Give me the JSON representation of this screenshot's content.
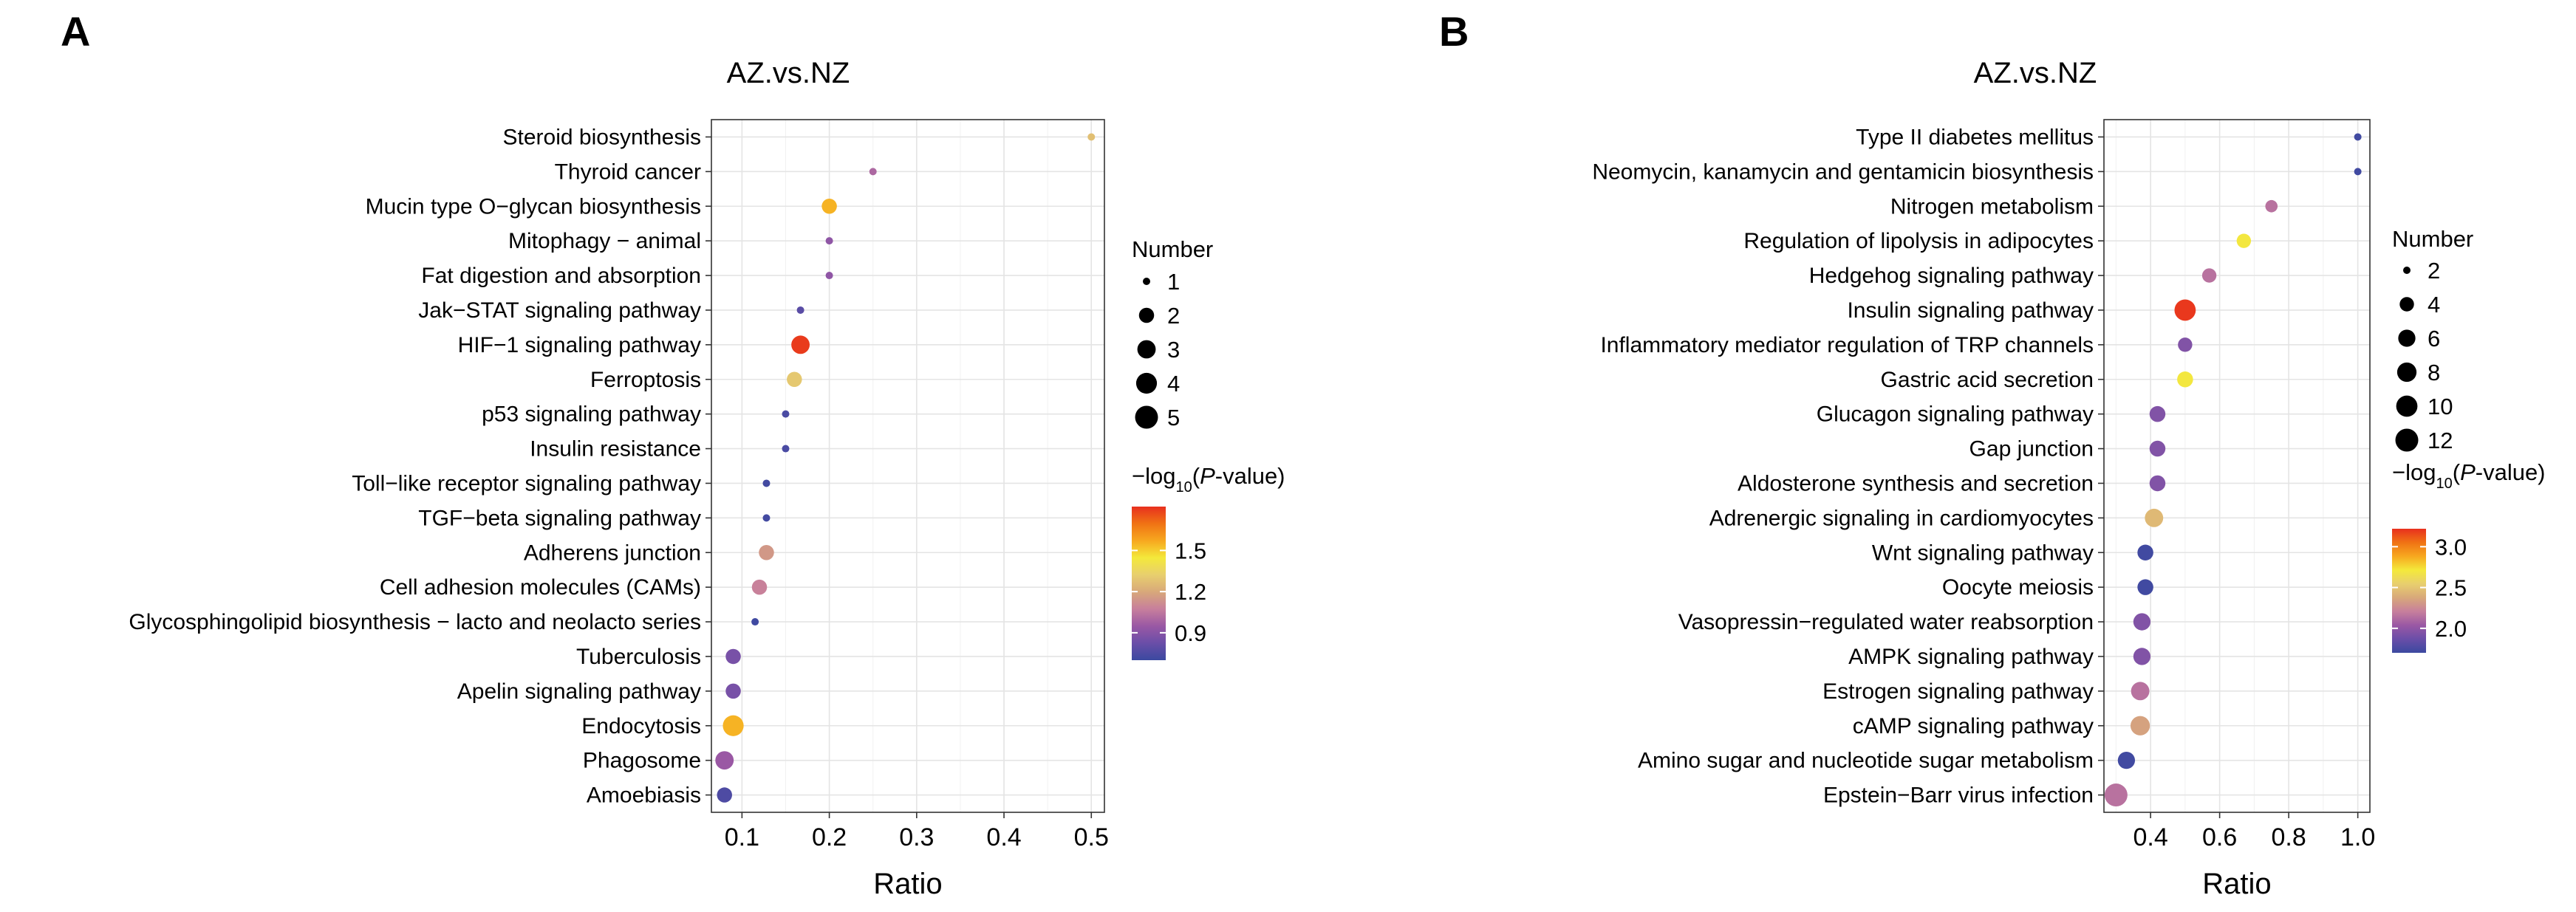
{
  "colors": {
    "scale": [
      "#3b49a0",
      "#6a4ea8",
      "#9a58a4",
      "#c77f9c",
      "#d8a87a",
      "#e8cf6e",
      "#f4e93b",
      "#f7a81f",
      "#f07314",
      "#e8301e"
    ]
  },
  "chart_data": [
    {
      "panel": "A",
      "type": "scatter",
      "title": "AZ.vs.NZ",
      "xlabel": "Ratio",
      "ylabel": "",
      "xlim": [
        0.065,
        0.515
      ],
      "xticks": [
        0.1,
        0.2,
        0.3,
        0.4,
        0.5
      ],
      "xtick_labels": [
        "0.1",
        "0.2",
        "0.3",
        "0.4",
        "0.5"
      ],
      "grid": true,
      "color_range": [
        0.7,
        1.82
      ],
      "size_range": [
        1,
        5
      ],
      "points": [
        {
          "pathway": "Steroid biosynthesis",
          "ratio": 0.5,
          "number": 1,
          "neglog10p": 1.27
        },
        {
          "pathway": "Thyroid cancer",
          "ratio": 0.25,
          "number": 1,
          "neglog10p": 1.0
        },
        {
          "pathway": "Mucin type O−glycan biosynthesis",
          "ratio": 0.2,
          "number": 2,
          "neglog10p": 1.55
        },
        {
          "pathway": "Mitophagy − animal",
          "ratio": 0.2,
          "number": 1,
          "neglog10p": 0.92
        },
        {
          "pathway": "Fat digestion and absorption",
          "ratio": 0.2,
          "number": 1,
          "neglog10p": 0.92
        },
        {
          "pathway": "Jak−STAT signaling pathway",
          "ratio": 0.167,
          "number": 1,
          "neglog10p": 0.78
        },
        {
          "pathway": "HIF−1 signaling pathway",
          "ratio": 0.167,
          "number": 3,
          "neglog10p": 1.8
        },
        {
          "pathway": "Ferroptosis",
          "ratio": 0.16,
          "number": 2,
          "neglog10p": 1.3
        },
        {
          "pathway": "p53 signaling pathway",
          "ratio": 0.15,
          "number": 1,
          "neglog10p": 0.74
        },
        {
          "pathway": "Insulin resistance",
          "ratio": 0.15,
          "number": 1,
          "neglog10p": 0.74
        },
        {
          "pathway": "Toll−like receptor signaling pathway",
          "ratio": 0.128,
          "number": 1,
          "neglog10p": 0.72
        },
        {
          "pathway": "TGF−beta signaling pathway",
          "ratio": 0.128,
          "number": 1,
          "neglog10p": 0.72
        },
        {
          "pathway": "Adherens junction",
          "ratio": 0.128,
          "number": 2,
          "neglog10p": 1.15
        },
        {
          "pathway": "Cell adhesion molecules (CAMs)",
          "ratio": 0.12,
          "number": 2,
          "neglog10p": 1.08
        },
        {
          "pathway": "Glycosphingolipid biosynthesis − lacto and neolacto series",
          "ratio": 0.115,
          "number": 1,
          "neglog10p": 0.71
        },
        {
          "pathway": "Tuberculosis",
          "ratio": 0.09,
          "number": 2,
          "neglog10p": 0.86
        },
        {
          "pathway": "Apelin signaling pathway",
          "ratio": 0.09,
          "number": 2,
          "neglog10p": 0.86
        },
        {
          "pathway": "Endocytosis",
          "ratio": 0.09,
          "number": 4,
          "neglog10p": 1.55
        },
        {
          "pathway": "Phagosome",
          "ratio": 0.08,
          "number": 3,
          "neglog10p": 0.95
        },
        {
          "pathway": "Amoebiasis",
          "ratio": 0.08,
          "number": 2,
          "neglog10p": 0.75
        }
      ],
      "legend_number": {
        "title": "Number",
        "values": [
          1,
          2,
          3,
          4,
          5
        ],
        "labels": [
          "1",
          "2",
          "3",
          "4",
          "5"
        ]
      },
      "legend_color": {
        "title_prefix": "−log",
        "title_sub": "10",
        "title_open": "(",
        "title_italic": "P",
        "title_suffix": "-value)",
        "ticks": [
          0.9,
          1.2,
          1.5
        ],
        "tick_labels": [
          "0.9",
          "1.2",
          "1.5"
        ]
      }
    },
    {
      "panel": "B",
      "type": "scatter",
      "title": "AZ.vs.NZ",
      "xlabel": "Ratio",
      "ylabel": "",
      "xlim": [
        0.265,
        1.035
      ],
      "xticks": [
        0.4,
        0.6,
        0.8,
        1.0
      ],
      "xtick_labels": [
        "0.4",
        "0.6",
        "0.8",
        "1.0"
      ],
      "grid": true,
      "color_range": [
        1.7,
        3.22
      ],
      "size_range": [
        2,
        12
      ],
      "points": [
        {
          "pathway": "Type II diabetes mellitus",
          "ratio": 1.0,
          "number": 2,
          "neglog10p": 1.72
        },
        {
          "pathway": "Neomycin, kanamycin and gentamicin biosynthesis",
          "ratio": 1.0,
          "number": 2,
          "neglog10p": 1.72
        },
        {
          "pathway": "Nitrogen metabolism",
          "ratio": 0.75,
          "number": 3,
          "neglog10p": 2.15
        },
        {
          "pathway": "Regulation of lipolysis in adipocytes",
          "ratio": 0.67,
          "number": 4,
          "neglog10p": 2.7
        },
        {
          "pathway": "Hedgehog signaling pathway",
          "ratio": 0.57,
          "number": 4,
          "neglog10p": 2.15
        },
        {
          "pathway": "Insulin signaling pathway",
          "ratio": 0.5,
          "number": 10,
          "neglog10p": 3.2
        },
        {
          "pathway": "Inflammatory mediator regulation of TRP channels",
          "ratio": 0.5,
          "number": 4,
          "neglog10p": 1.95
        },
        {
          "pathway": "Gastric acid secretion",
          "ratio": 0.5,
          "number": 5,
          "neglog10p": 2.7
        },
        {
          "pathway": "Glucagon signaling pathway",
          "ratio": 0.42,
          "number": 5,
          "neglog10p": 1.95
        },
        {
          "pathway": "Gap junction",
          "ratio": 0.42,
          "number": 5,
          "neglog10p": 1.95
        },
        {
          "pathway": "Aldosterone synthesis and secretion",
          "ratio": 0.42,
          "number": 5,
          "neglog10p": 1.95
        },
        {
          "pathway": "Adrenergic signaling in cardiomyocytes",
          "ratio": 0.41,
          "number": 7,
          "neglog10p": 2.45
        },
        {
          "pathway": "Wnt signaling pathway",
          "ratio": 0.385,
          "number": 5,
          "neglog10p": 1.72
        },
        {
          "pathway": "Oocyte meiosis",
          "ratio": 0.385,
          "number": 5,
          "neglog10p": 1.72
        },
        {
          "pathway": "Vasopressin−regulated water reabsorption",
          "ratio": 0.375,
          "number": 6,
          "neglog10p": 1.95
        },
        {
          "pathway": "AMPK signaling pathway",
          "ratio": 0.375,
          "number": 6,
          "neglog10p": 1.95
        },
        {
          "pathway": "Estrogen signaling pathway",
          "ratio": 0.37,
          "number": 7,
          "neglog10p": 2.15
        },
        {
          "pathway": "cAMP signaling pathway",
          "ratio": 0.37,
          "number": 8,
          "neglog10p": 2.35
        },
        {
          "pathway": "Amino sugar and nucleotide sugar metabolism",
          "ratio": 0.33,
          "number": 6,
          "neglog10p": 1.72
        },
        {
          "pathway": "Epstein−Barr virus infection",
          "ratio": 0.3,
          "number": 12,
          "neglog10p": 2.15
        }
      ],
      "legend_number": {
        "title": "Number",
        "values": [
          2,
          4,
          6,
          8,
          10,
          12
        ],
        "labels": [
          "2",
          "4",
          "6",
          "8",
          "10",
          "12"
        ]
      },
      "legend_color": {
        "title_prefix": "−log",
        "title_sub": "10",
        "title_open": "(",
        "title_italic": "P",
        "title_suffix": "-value)",
        "ticks": [
          2.0,
          2.5,
          3.0
        ],
        "tick_labels": [
          "2.0",
          "2.5",
          "3.0"
        ]
      }
    }
  ]
}
